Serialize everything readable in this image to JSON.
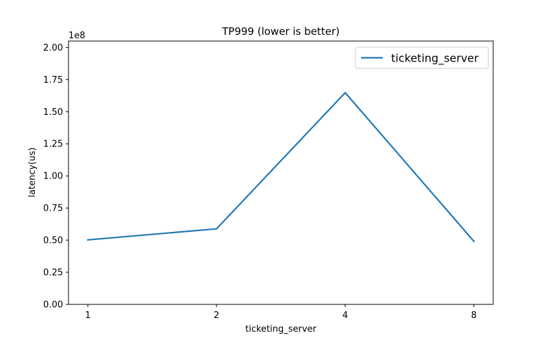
{
  "chart_data": {
    "type": "line",
    "title": "TP999 (lower is better)",
    "xlabel": "ticketing_server",
    "ylabel": "latency(us)",
    "y_offset_label": "1e8",
    "categories": [
      "1",
      "2",
      "4",
      "8"
    ],
    "series": [
      {
        "name": "ticketing_server",
        "color": "#1f77b4",
        "values": [
          50200000,
          58800000,
          164800000,
          49100000
        ]
      }
    ],
    "y_ticks": [
      0,
      25000000,
      50000000,
      75000000,
      100000000,
      125000000,
      150000000,
      175000000,
      200000000
    ],
    "y_tick_labels": [
      "0.00",
      "0.25",
      "0.50",
      "0.75",
      "1.00",
      "1.25",
      "1.50",
      "1.75",
      "2.00"
    ],
    "ylim": [
      0,
      205000000
    ],
    "grid": false,
    "legend_position": "top-right"
  }
}
